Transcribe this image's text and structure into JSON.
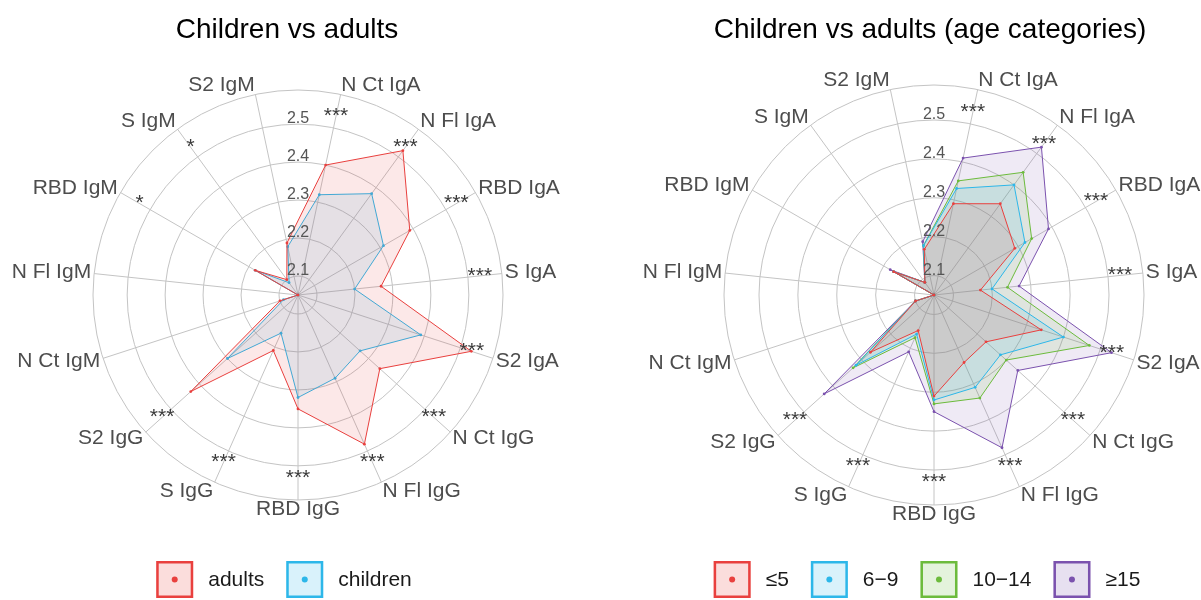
{
  "chart_data": [
    {
      "type": "radar",
      "title": "Children vs adults",
      "categories": [
        "N Ct IgA",
        "N Fl IgA",
        "RBD IgA",
        "S IgA",
        "S2 IgA",
        "N Ct IgG",
        "N Fl IgG",
        "RBD IgG",
        "S IgG",
        "S2 IgG",
        "N Ct IgM",
        "N Fl IgM",
        "RBD IgM",
        "S IgM",
        "S2 IgM"
      ],
      "series": [
        {
          "name": "adults",
          "color": "#e9403e",
          "values": [
            2.4,
            2.52,
            2.39,
            2.27,
            2.53,
            2.34,
            2.48,
            2.35,
            2.21,
            2.43,
            2.1,
            2.05,
            2.18,
            2.1,
            2.19
          ]
        },
        {
          "name": "children",
          "color": "#2db7e9",
          "values": [
            2.32,
            2.38,
            2.31,
            2.2,
            2.39,
            2.27,
            2.29,
            2.32,
            2.16,
            2.3,
            2.09,
            2.05,
            2.18,
            2.09,
            2.18
          ]
        }
      ],
      "ylim": [
        2.05,
        2.59
      ],
      "yticks": [
        2.1,
        2.2,
        2.3,
        2.4,
        2.5
      ],
      "grid": true,
      "legend": "bottom",
      "marker": "circle",
      "annotations": [
        {
          "text": "***",
          "x": "N Ct IgA"
        },
        {
          "text": "***",
          "x": "N Fl IgA"
        },
        {
          "text": "***",
          "x": "RBD IgA"
        },
        {
          "text": "***",
          "x": "S IgA"
        },
        {
          "text": "***",
          "x": "S2 IgA"
        },
        {
          "text": "***",
          "x": "N Ct IgG"
        },
        {
          "text": "***",
          "x": "N Fl IgG"
        },
        {
          "text": "***",
          "x": "RBD IgG"
        },
        {
          "text": "***",
          "x": "S IgG"
        },
        {
          "text": "***",
          "x": "S2 IgG"
        },
        {
          "text": "*",
          "x": "RBD IgM"
        },
        {
          "text": "*",
          "x": "S IgM"
        }
      ]
    },
    {
      "type": "radar",
      "title": "Children vs adults (age categories)",
      "categories": [
        "N Ct IgA",
        "N Fl IgA",
        "RBD IgA",
        "S IgA",
        "S2 IgA",
        "N Ct IgG",
        "N Fl IgG",
        "RBD IgG",
        "S IgG",
        "S2 IgG",
        "N Ct IgM",
        "N Fl IgM",
        "RBD IgM",
        "S IgM",
        "S2 IgM"
      ],
      "series": [
        {
          "name": "≤5",
          "color": "#e9403e",
          "values": [
            2.29,
            2.34,
            2.29,
            2.17,
            2.34,
            2.23,
            2.24,
            2.31,
            2.15,
            2.27,
            2.1,
            2.05,
            2.17,
            2.09,
            2.17
          ]
        },
        {
          "name": "6−9",
          "color": "#2db7e9",
          "values": [
            2.33,
            2.4,
            2.32,
            2.2,
            2.4,
            2.28,
            2.31,
            2.32,
            2.16,
            2.32,
            2.1,
            2.05,
            2.17,
            2.09,
            2.18
          ]
        },
        {
          "name": "10−14",
          "color": "#6cbb3c",
          "values": [
            2.35,
            2.44,
            2.34,
            2.24,
            2.47,
            2.3,
            2.34,
            2.33,
            2.17,
            2.33,
            2.1,
            2.05,
            2.17,
            2.09,
            2.18
          ]
        },
        {
          "name": "≥15",
          "color": "#7b52ae",
          "values": [
            2.41,
            2.52,
            2.39,
            2.27,
            2.53,
            2.34,
            2.48,
            2.35,
            2.21,
            2.43,
            2.1,
            2.05,
            2.18,
            2.09,
            2.19
          ]
        }
      ],
      "ylim": [
        2.05,
        2.59
      ],
      "yticks": [
        2.1,
        2.2,
        2.3,
        2.4,
        2.5
      ],
      "grid": true,
      "legend": "bottom",
      "marker": "circle",
      "annotations": [
        {
          "text": "***",
          "x": "N Ct IgA"
        },
        {
          "text": "***",
          "x": "N Fl IgA"
        },
        {
          "text": "***",
          "x": "RBD IgA"
        },
        {
          "text": "***",
          "x": "S IgA"
        },
        {
          "text": "***",
          "x": "S2 IgA"
        },
        {
          "text": "***",
          "x": "N Ct IgG"
        },
        {
          "text": "***",
          "x": "N Fl IgG"
        },
        {
          "text": "***",
          "x": "RBD IgG"
        },
        {
          "text": "***",
          "x": "S IgG"
        },
        {
          "text": "***",
          "x": "S2 IgG"
        }
      ]
    }
  ]
}
